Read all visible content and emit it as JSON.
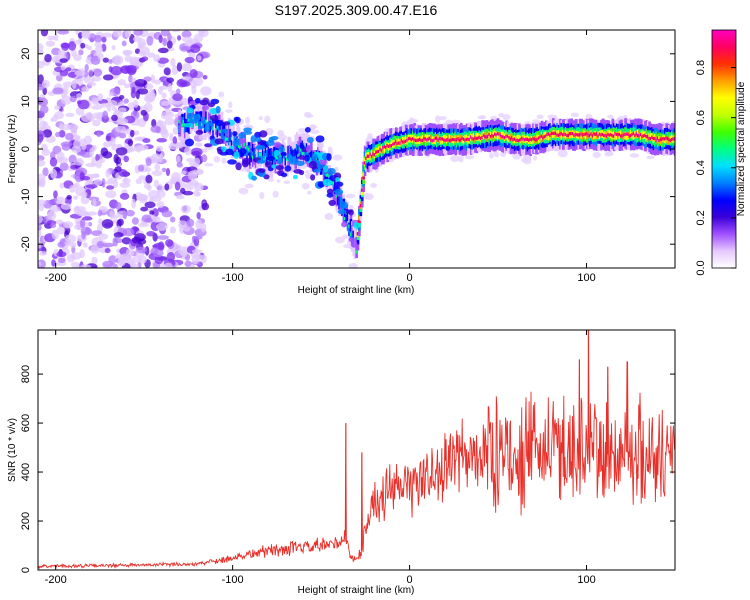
{
  "title": "S197.2025.309.00.47.E16",
  "chart_data": [
    {
      "type": "heatmap",
      "name": "spectrogram",
      "xlabel": "Height of straight line (km)",
      "ylabel": "Frequency (Hz)",
      "xlim": [
        -210,
        150
      ],
      "ylim": [
        -25,
        25
      ],
      "xticks": [
        -200,
        -100,
        0,
        100
      ],
      "xtick_labels": [
        "-200",
        "-100",
        "0",
        "100"
      ],
      "yticks": [
        20,
        10,
        0,
        -10,
        -20
      ],
      "ytick_labels": [
        "20",
        "10",
        "0",
        "-10",
        "-20"
      ],
      "ridge": {
        "description": "main spectral ridge (center frequency vs height)",
        "x": [
          -130,
          -120,
          -110,
          -100,
          -90,
          -80,
          -70,
          -60,
          -50,
          -45,
          -40,
          -35,
          -30,
          -25,
          -20,
          -15,
          -10,
          0,
          10,
          20,
          30,
          40,
          50,
          60,
          70,
          80,
          90,
          100,
          110,
          120,
          130,
          140,
          150
        ],
        "y": [
          5,
          6,
          5,
          2,
          -1,
          -2,
          -2,
          0,
          -3,
          -6,
          -10,
          -15,
          -21,
          -2,
          -1,
          0,
          1,
          2,
          2,
          2,
          2,
          2.5,
          3,
          2,
          2,
          3,
          3,
          3,
          3,
          3,
          3,
          2,
          2
        ]
      },
      "colorbar": {
        "label": "Normalized spectral amplitude",
        "range": [
          0,
          0.95
        ],
        "ticks": [
          0.0,
          0.2,
          0.4,
          0.6,
          0.8
        ],
        "tick_labels": [
          "0.0",
          "0.2",
          "0.4",
          "0.6",
          "0.8"
        ],
        "colors": [
          "#ffffff",
          "#e6c8ff",
          "#a050ff",
          "#3a00d8",
          "#0000ff",
          "#0080ff",
          "#00e0ff",
          "#00ff80",
          "#40ff00",
          "#c0ff00",
          "#ffff00",
          "#ffa000",
          "#ff3000",
          "#ff0060",
          "#ff00c0"
        ]
      }
    },
    {
      "type": "line",
      "name": "snr",
      "xlabel": "Height of straight line (km)",
      "ylabel": "SNR (10 * v/v)",
      "xlim": [
        -210,
        150
      ],
      "ylim": [
        0,
        980
      ],
      "xticks": [
        -200,
        -100,
        0,
        100
      ],
      "xtick_labels": [
        "-200",
        "-100",
        "0",
        "100"
      ],
      "yticks": [
        0,
        200,
        400,
        600,
        800
      ],
      "ytick_labels": [
        "0",
        "200",
        "400",
        "600",
        "800"
      ],
      "series": [
        {
          "name": "SNR",
          "color": "#e8302a",
          "trend_x": [
            -210,
            -150,
            -120,
            -100,
            -80,
            -60,
            -45,
            -40,
            -36,
            -34,
            -30,
            -27,
            -25,
            -22,
            -20,
            -15,
            -10,
            -5,
            0,
            10,
            20,
            30,
            40,
            50,
            60,
            70,
            80,
            90,
            100,
            110,
            120,
            130,
            140,
            150
          ],
          "trend_y": [
            15,
            20,
            25,
            50,
            80,
            90,
            100,
            110,
            140,
            60,
            40,
            80,
            180,
            250,
            270,
            300,
            320,
            330,
            340,
            380,
            420,
            460,
            470,
            480,
            470,
            480,
            490,
            500,
            500,
            470,
            480,
            480,
            470,
            480
          ],
          "spikes": [
            {
              "x": -36,
              "y": 600
            },
            {
              "x": -27,
              "y": 480
            },
            {
              "x": 96,
              "y": 860
            },
            {
              "x": 101,
              "y": 980
            },
            {
              "x": 112,
              "y": 830
            },
            {
              "x": 123,
              "y": 850
            }
          ]
        }
      ]
    }
  ]
}
